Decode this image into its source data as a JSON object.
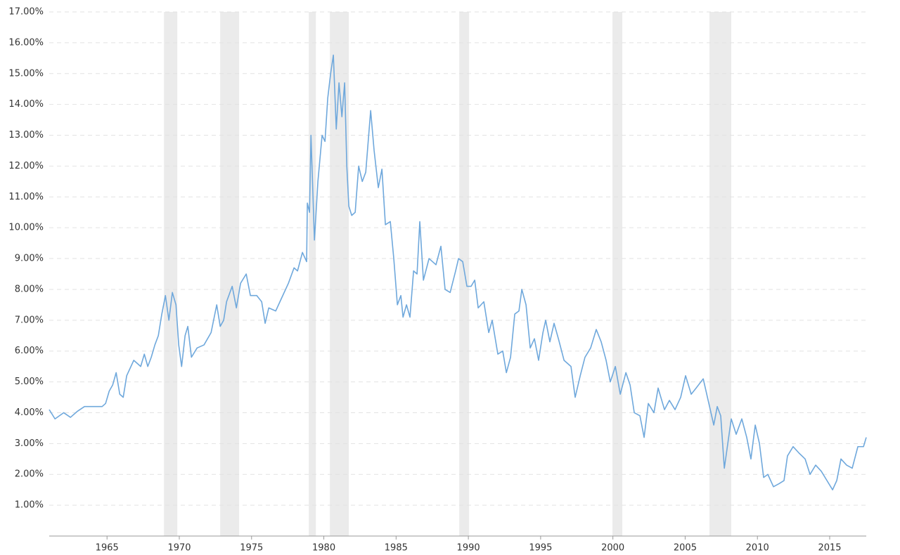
{
  "chart_data": {
    "type": "line",
    "x": [
      1961.0,
      1961.4,
      1962.0,
      1962.47,
      1962.96,
      1963.44,
      1963.93,
      1964.66,
      1964.9,
      1965.15,
      1965.39,
      1965.63,
      1965.88,
      1966.12,
      1966.36,
      1966.85,
      1967.33,
      1967.58,
      1967.82,
      1968.06,
      1968.31,
      1968.55,
      1968.79,
      1969.04,
      1969.28,
      1969.52,
      1969.77,
      1969.96,
      1970.16,
      1970.4,
      1970.59,
      1970.84,
      1971.23,
      1971.71,
      1972.2,
      1972.59,
      1972.83,
      1973.07,
      1973.27,
      1973.66,
      1973.95,
      1974.24,
      1974.63,
      1974.92,
      1975.36,
      1975.7,
      1975.94,
      1976.19,
      1976.67,
      1977.06,
      1977.55,
      1977.94,
      1978.18,
      1978.52,
      1978.81,
      1978.86,
      1979.01,
      1979.11,
      1979.35,
      1979.59,
      1979.88,
      1980.08,
      1980.27,
      1980.47,
      1980.66,
      1980.86,
      1981.05,
      1981.25,
      1981.44,
      1981.59,
      1981.73,
      1981.93,
      1982.17,
      1982.41,
      1982.66,
      1982.9,
      1983.24,
      1983.48,
      1983.77,
      1984.02,
      1984.26,
      1984.6,
      1984.84,
      1985.09,
      1985.33,
      1985.48,
      1985.72,
      1985.96,
      1986.21,
      1986.45,
      1986.64,
      1986.89,
      1987.28,
      1987.76,
      1988.1,
      1988.39,
      1988.74,
      1989.12,
      1989.32,
      1989.61,
      1989.9,
      1990.19,
      1990.44,
      1990.68,
      1991.07,
      1991.41,
      1991.65,
      1992.04,
      1992.38,
      1992.63,
      1992.92,
      1993.21,
      1993.5,
      1993.7,
      1993.99,
      1994.28,
      1994.57,
      1994.86,
      1995.16,
      1995.35,
      1995.64,
      1995.93,
      1996.23,
      1996.62,
      1997.1,
      1997.39,
      1997.74,
      1998.07,
      1998.46,
      1998.85,
      1999.19,
      1999.53,
      1999.82,
      2000.17,
      2000.51,
      2000.9,
      2001.19,
      2001.48,
      2001.87,
      2002.16,
      2002.45,
      2002.84,
      2003.13,
      2003.57,
      2003.91,
      2004.3,
      2004.69,
      2005.03,
      2005.42,
      2005.76,
      2006.25,
      2006.64,
      2006.98,
      2007.22,
      2007.46,
      2007.71,
      2007.95,
      2008.19,
      2008.53,
      2008.92,
      2009.26,
      2009.55,
      2009.85,
      2010.14,
      2010.43,
      2010.72,
      2011.11,
      2011.5,
      2011.84,
      2012.08,
      2012.47,
      2012.86,
      2013.3,
      2013.64,
      2014.03,
      2014.42,
      2014.81,
      2015.2,
      2015.49,
      2015.78,
      2016.17,
      2016.56,
      2016.95,
      2017.34,
      2017.53
    ],
    "series": [
      {
        "color": "#6fa8dc",
        "values": [
          4.1,
          3.8,
          4.0,
          3.85,
          4.05,
          4.2,
          4.2,
          4.2,
          4.3,
          4.7,
          4.9,
          5.3,
          4.6,
          4.5,
          5.2,
          5.7,
          5.5,
          5.9,
          5.5,
          5.8,
          6.2,
          6.5,
          7.2,
          7.8,
          7.0,
          7.9,
          7.5,
          6.2,
          5.5,
          6.5,
          6.8,
          5.8,
          6.1,
          6.2,
          6.6,
          7.5,
          6.8,
          7.0,
          7.6,
          8.1,
          7.4,
          8.2,
          8.5,
          7.8,
          7.8,
          7.6,
          6.9,
          7.4,
          7.3,
          7.7,
          8.2,
          8.7,
          8.6,
          9.2,
          8.9,
          10.8,
          10.5,
          13.0,
          9.6,
          11.5,
          13.0,
          12.8,
          14.2,
          15.0,
          15.6,
          13.2,
          14.7,
          13.6,
          14.7,
          12.0,
          10.7,
          10.4,
          10.5,
          12.0,
          11.5,
          11.8,
          13.8,
          12.5,
          11.3,
          11.9,
          10.1,
          10.2,
          9.0,
          7.5,
          7.8,
          7.1,
          7.5,
          7.1,
          8.6,
          8.5,
          10.2,
          8.3,
          9.0,
          8.8,
          9.4,
          8.0,
          7.9,
          8.6,
          9.0,
          8.9,
          8.1,
          8.1,
          8.3,
          7.4,
          7.6,
          6.6,
          7.0,
          5.9,
          6.0,
          5.3,
          5.8,
          7.2,
          7.3,
          8.0,
          7.5,
          6.1,
          6.4,
          5.7,
          6.6,
          7.0,
          6.3,
          6.9,
          6.4,
          5.7,
          5.5,
          4.5,
          5.2,
          5.8,
          6.1,
          6.7,
          6.3,
          5.7,
          5.0,
          5.5,
          4.6,
          5.3,
          4.9,
          4.0,
          3.9,
          3.2,
          4.3,
          4.0,
          4.8,
          4.1,
          4.4,
          4.1,
          4.5,
          5.2,
          4.6,
          4.8,
          5.1,
          4.3,
          3.6,
          4.2,
          3.9,
          2.2,
          3.0,
          3.8,
          3.3,
          3.8,
          3.2,
          2.5,
          3.6,
          3.0,
          1.9,
          2.0,
          1.6,
          1.7,
          1.8,
          2.6,
          2.9,
          2.7,
          2.5,
          2.0,
          2.3,
          2.1,
          1.8,
          1.5,
          1.8,
          2.5,
          2.3,
          2.2,
          2.9,
          2.9,
          3.2
        ]
      }
    ],
    "shaded_regions": [
      [
        1968.94,
        1969.86
      ],
      [
        1972.83,
        1974.14
      ],
      [
        1978.96,
        1979.45
      ],
      [
        1980.42,
        1981.73
      ],
      [
        1989.37,
        1990.05
      ],
      [
        1999.97,
        2000.65
      ],
      [
        2006.68,
        2008.19
      ]
    ],
    "shade_color": "#ebebeb",
    "xlim": [
      1961,
      2017.53
    ],
    "xticks": [
      1965,
      1970,
      1975,
      1980,
      1985,
      1990,
      1995,
      2000,
      2005,
      2010,
      2015
    ],
    "ylim": [
      0,
      17
    ],
    "yticks": [
      {
        "value": 1,
        "label": "1.00%"
      },
      {
        "value": 2,
        "label": "2.00%"
      },
      {
        "value": 3,
        "label": "3.00%"
      },
      {
        "value": 4,
        "label": "4.00%"
      },
      {
        "value": 5,
        "label": "5.00%"
      },
      {
        "value": 6,
        "label": "6.00%"
      },
      {
        "value": 7,
        "label": "7.00%"
      },
      {
        "value": 8,
        "label": "8.00%"
      },
      {
        "value": 9,
        "label": "9.00%"
      },
      {
        "value": 10,
        "label": "10.00%"
      },
      {
        "value": 11,
        "label": "11.00%"
      },
      {
        "value": 12,
        "label": "12.00%"
      },
      {
        "value": 13,
        "label": "13.00%"
      },
      {
        "value": 14,
        "label": "14.00%"
      },
      {
        "value": 15,
        "label": "15.00%"
      },
      {
        "value": 16,
        "label": "16.00%"
      },
      {
        "value": 17,
        "label": "17.00%"
      }
    ],
    "grid": true
  }
}
